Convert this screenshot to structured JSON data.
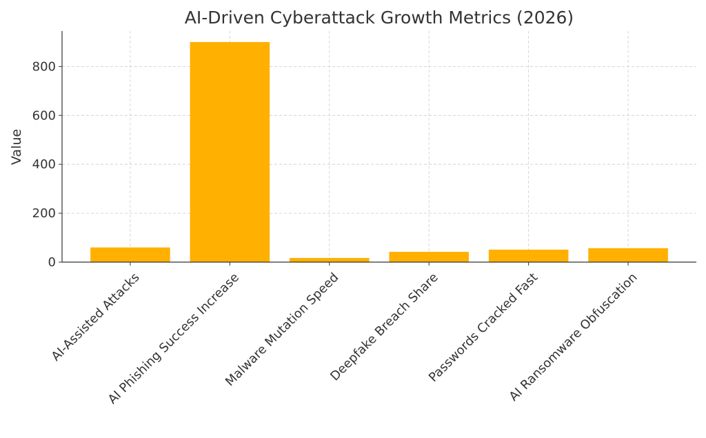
{
  "chart_data": {
    "type": "bar",
    "title": "AI-Driven Cyberattack Growth Metrics (2026)",
    "xlabel": "",
    "ylabel": "Value",
    "categories": [
      "AI-Assisted Attacks",
      "AI Phishing Success Increase",
      "Malware Mutation Speed",
      "Deepfake Breach Share",
      "Passwords Cracked Fast",
      "AI Ransomware Obfuscation"
    ],
    "values": [
      60,
      900,
      17,
      42,
      51,
      57
    ],
    "ylim": [
      0,
      945
    ],
    "yticks": [
      0,
      200,
      400,
      600,
      800
    ],
    "grid": true,
    "bar_color": "#FFB000",
    "grid_color": "#cccccc",
    "text_color": "#333333"
  }
}
